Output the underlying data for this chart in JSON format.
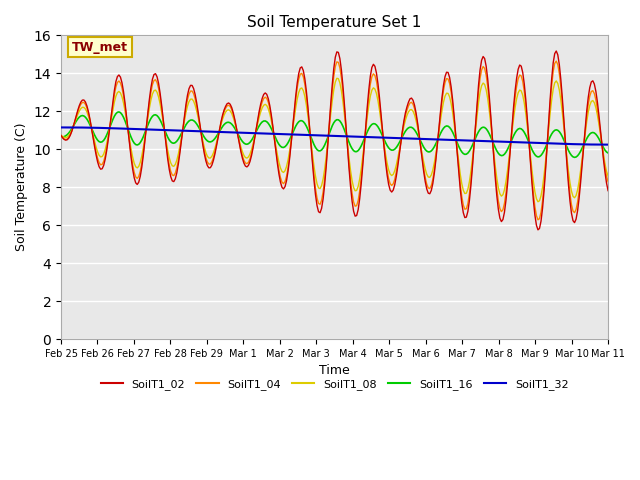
{
  "title": "Soil Temperature Set 1",
  "xlabel": "Time",
  "ylabel": "Soil Temperature (C)",
  "ylim": [
    0,
    16
  ],
  "yticks": [
    0,
    2,
    4,
    6,
    8,
    10,
    12,
    14,
    16
  ],
  "bg_color": "#e8e8e8",
  "plot_bg": "#e8e8e8",
  "annotation_text": "TW_met",
  "annotation_color": "#8b0000",
  "annotation_bg": "#ffffcc",
  "annotation_border": "#ccaa00",
  "colors": {
    "SoilT1_02": "#cc0000",
    "SoilT1_04": "#ff8800",
    "SoilT1_08": "#ddcc00",
    "SoilT1_16": "#00cc00",
    "SoilT1_32": "#0000cc"
  },
  "x_tick_labels": [
    "Feb 25",
    "Feb 26",
    "Feb 27",
    "Feb 28",
    "Feb 29",
    "Mar 1",
    "Mar 2",
    "Mar 3",
    "Mar 4",
    "Mar 5",
    "Mar 6",
    "Mar 7",
    "Mar 8",
    "Mar 9",
    "Mar 10",
    "Mar 11"
  ]
}
